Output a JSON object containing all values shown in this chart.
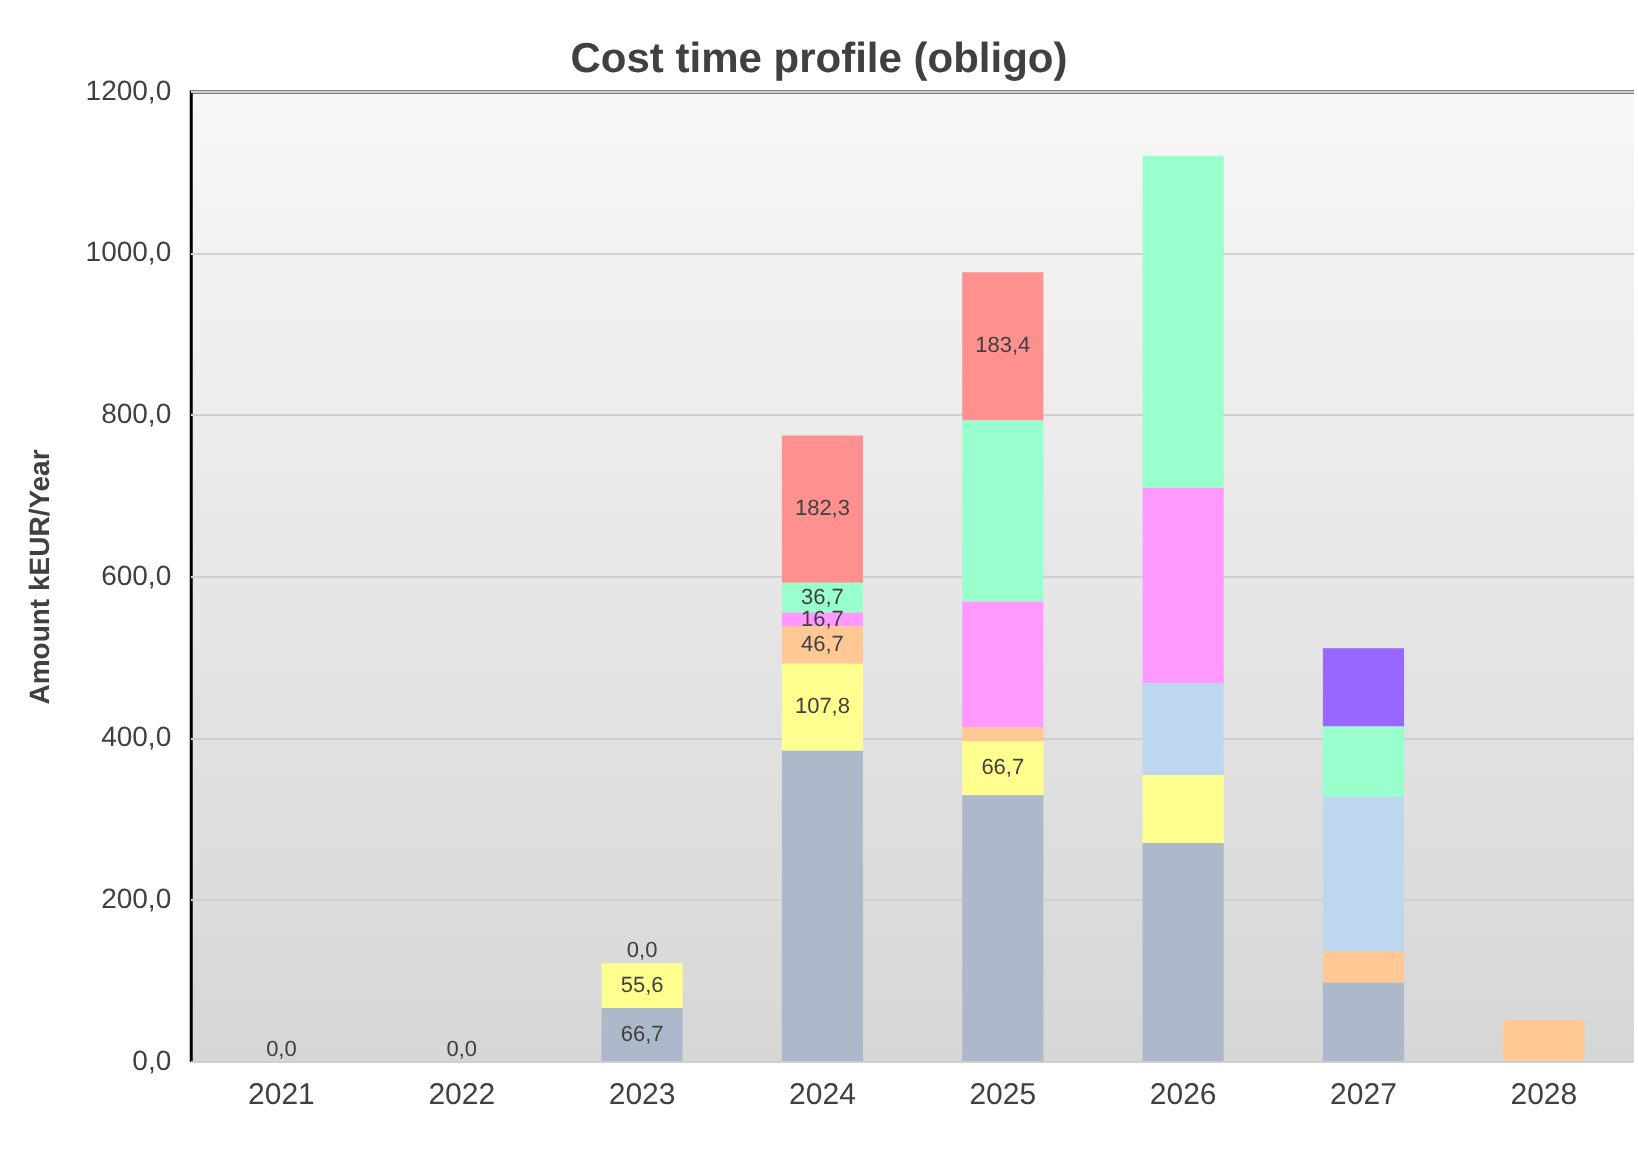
{
  "chart_data": {
    "type": "bar",
    "title": "Cost time profile (obligo)",
    "ylabel": "Amount kEUR/Year",
    "categories": [
      "2021",
      "2022",
      "2023",
      "2024",
      "2025",
      "2026",
      "2027",
      "2028"
    ],
    "stacked": true,
    "grid": "y",
    "legend": false,
    "ylim": [
      0,
      1200
    ],
    "yticks": [
      {
        "value": 0,
        "label": "0,0"
      },
      {
        "value": 200,
        "label": "200,0"
      },
      {
        "value": 400,
        "label": "400,0"
      },
      {
        "value": 600,
        "label": "600,0"
      },
      {
        "value": 800,
        "label": "800,0"
      },
      {
        "value": 1000,
        "label": "1000,0"
      },
      {
        "value": 1200,
        "label": "1200,0"
      }
    ],
    "series": [
      {
        "color": "#adb9ca",
        "values": [
          0,
          0,
          66.7,
          385,
          330,
          271,
          98,
          0
        ],
        "value_labels": [
          "0,0",
          null,
          "66,7",
          null,
          null,
          null,
          null,
          null
        ]
      },
      {
        "color": "#ffff8f",
        "values": [
          0,
          0,
          55.6,
          107.8,
          66.7,
          84,
          0,
          0
        ],
        "value_labels": [
          null,
          "0,0",
          "55,6",
          "107,8",
          "66,7",
          null,
          null,
          null
        ]
      },
      {
        "color": "#ffc895",
        "values": [
          0,
          0,
          0,
          46.7,
          17,
          0,
          39,
          52
        ],
        "value_labels": [
          null,
          null,
          "0,0",
          "46,7",
          null,
          null,
          null,
          null
        ]
      },
      {
        "color": "#bdd7ee",
        "values": [
          0,
          0,
          0,
          0,
          0,
          114,
          191,
          0
        ]
      },
      {
        "color": "#ff99ff",
        "values": [
          0,
          0,
          0,
          16.7,
          156,
          241,
          0,
          0
        ],
        "value_labels": [
          null,
          null,
          null,
          "16,7",
          null,
          null,
          null,
          null
        ]
      },
      {
        "color": "#99ffcc",
        "values": [
          0,
          0,
          0,
          36.7,
          224,
          411,
          87,
          0
        ],
        "value_labels": [
          null,
          null,
          null,
          "36,7",
          null,
          null,
          null,
          null
        ]
      },
      {
        "color": "#ff9090",
        "values": [
          0,
          0,
          0,
          182.3,
          183.4,
          0,
          0,
          0
        ],
        "value_labels": [
          null,
          null,
          null,
          "182,3",
          "183,4",
          null,
          null,
          null
        ]
      },
      {
        "color": "#9966ff",
        "values": [
          0,
          0,
          0,
          0,
          0,
          0,
          97,
          0
        ]
      }
    ]
  }
}
